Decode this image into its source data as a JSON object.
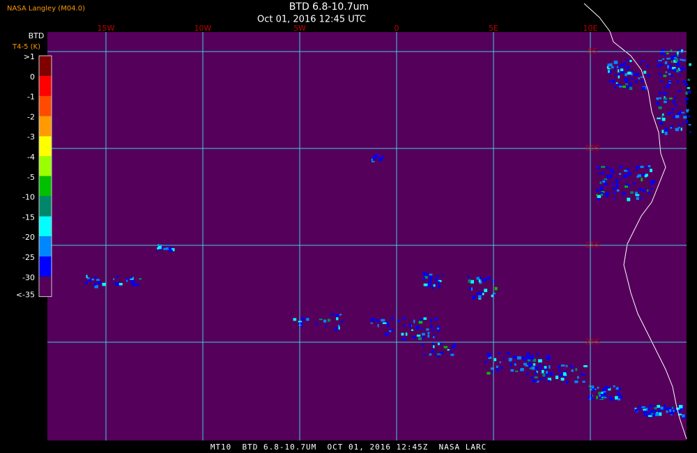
{
  "header": {
    "source": "NASA Langley (M04.0)",
    "title": "BTD 6.8-10.7um",
    "datetime": "Oct 01, 2016 12:45 UTC"
  },
  "legend": {
    "title": "BTD",
    "unit": "T4-5 (K)",
    "entries": [
      {
        "label": ">1",
        "color": "#800000"
      },
      {
        "label": "0",
        "color": "#ff0000"
      },
      {
        "label": "-1",
        "color": "#ff4a00"
      },
      {
        "label": "-2",
        "color": "#ff9a00"
      },
      {
        "label": "-3",
        "color": "#ffff00"
      },
      {
        "label": "-4",
        "color": "#9aff00"
      },
      {
        "label": "-5",
        "color": "#00c000"
      },
      {
        "label": "-10",
        "color": "#00866a"
      },
      {
        "label": "-15",
        "color": "#00ffff"
      },
      {
        "label": "-20",
        "color": "#0086ff"
      },
      {
        "label": "-25",
        "color": "#0000ff"
      },
      {
        "label": "-30",
        "color": "#55005a"
      }
    ],
    "bottom_label": "<-35"
  },
  "grid": {
    "longitudes": [
      "15W",
      "10W",
      "5W",
      "0",
      "5E",
      "10E"
    ],
    "latitudes": [
      "5S",
      "10S",
      "15S",
      "20S"
    ]
  },
  "footer": "MT10  BTD 6.8-10.7UM  OCT 01, 2016 12:45Z  NASA LARC"
}
